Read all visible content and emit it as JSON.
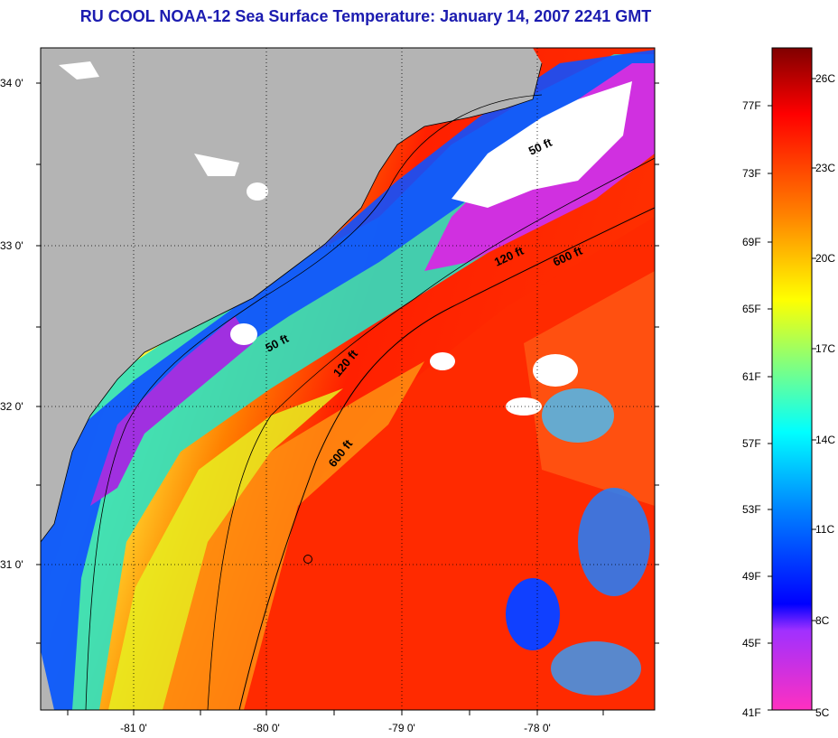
{
  "title": "RU COOL  NOAA-12  Sea Surface Temperature:  January 14, 2007 2241 GMT",
  "map": {
    "lat_labels": [
      "34 0'",
      "33 0'",
      "32 0'",
      "31 0'"
    ],
    "lon_labels": [
      "-81 0'",
      "-80 0'",
      "-79 0'",
      "-78 0'"
    ],
    "contour_labels": [
      "50 ft",
      "120 ft",
      "600 ft",
      "50 ft",
      "120 ft",
      "600 ft"
    ],
    "colors": {
      "land": "#b4b4b4",
      "cloud": "#ffffff",
      "warm": "#ff2a00",
      "cold": "#1030ff"
    }
  },
  "colorbar": {
    "f_labels": [
      "77F",
      "73F",
      "69F",
      "65F",
      "61F",
      "57F",
      "53F",
      "49F",
      "45F",
      "41F"
    ],
    "c_labels": [
      "26C",
      "23C",
      "20C",
      "17C",
      "14C",
      "11C",
      "8C",
      "5C"
    ],
    "stops": [
      "#800000",
      "#ff0000",
      "#ff8000",
      "#ffff00",
      "#80ff80",
      "#00ffff",
      "#0080ff",
      "#0000ff",
      "#8000ff",
      "#ff00ff"
    ]
  }
}
